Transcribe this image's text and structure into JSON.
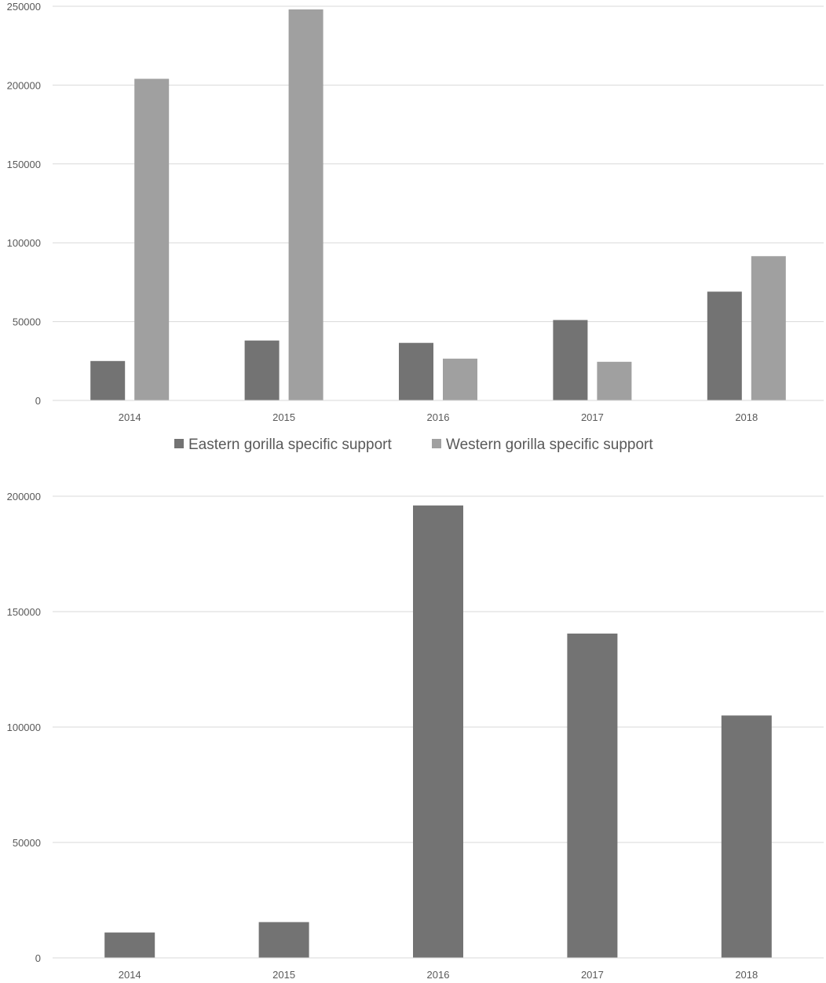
{
  "chart_data": [
    {
      "type": "bar",
      "categories": [
        "2014",
        "2015",
        "2016",
        "2017",
        "2018"
      ],
      "series": [
        {
          "name": "Eastern gorilla specific support",
          "values": [
            25000,
            38000,
            36500,
            51000,
            69000
          ],
          "color": "#737373"
        },
        {
          "name": "Western gorilla specific support",
          "values": [
            204000,
            248000,
            26500,
            24500,
            91500
          ],
          "color": "#a0a0a0"
        }
      ],
      "yticks": [
        "0",
        "50000",
        "100000",
        "150000",
        "200000",
        "250000"
      ],
      "ylim": [
        0,
        250000
      ],
      "grid": true,
      "legend": "bottom"
    },
    {
      "type": "bar",
      "categories": [
        "2014",
        "2015",
        "2016",
        "2017",
        "2018"
      ],
      "series": [
        {
          "values": [
            11000,
            15500,
            196000,
            140500,
            105000
          ],
          "color": "#737373"
        }
      ],
      "yticks": [
        "0",
        "50000",
        "100000",
        "150000",
        "200000"
      ],
      "ylim": [
        0,
        200000
      ],
      "grid": true,
      "legend": "none"
    }
  ]
}
